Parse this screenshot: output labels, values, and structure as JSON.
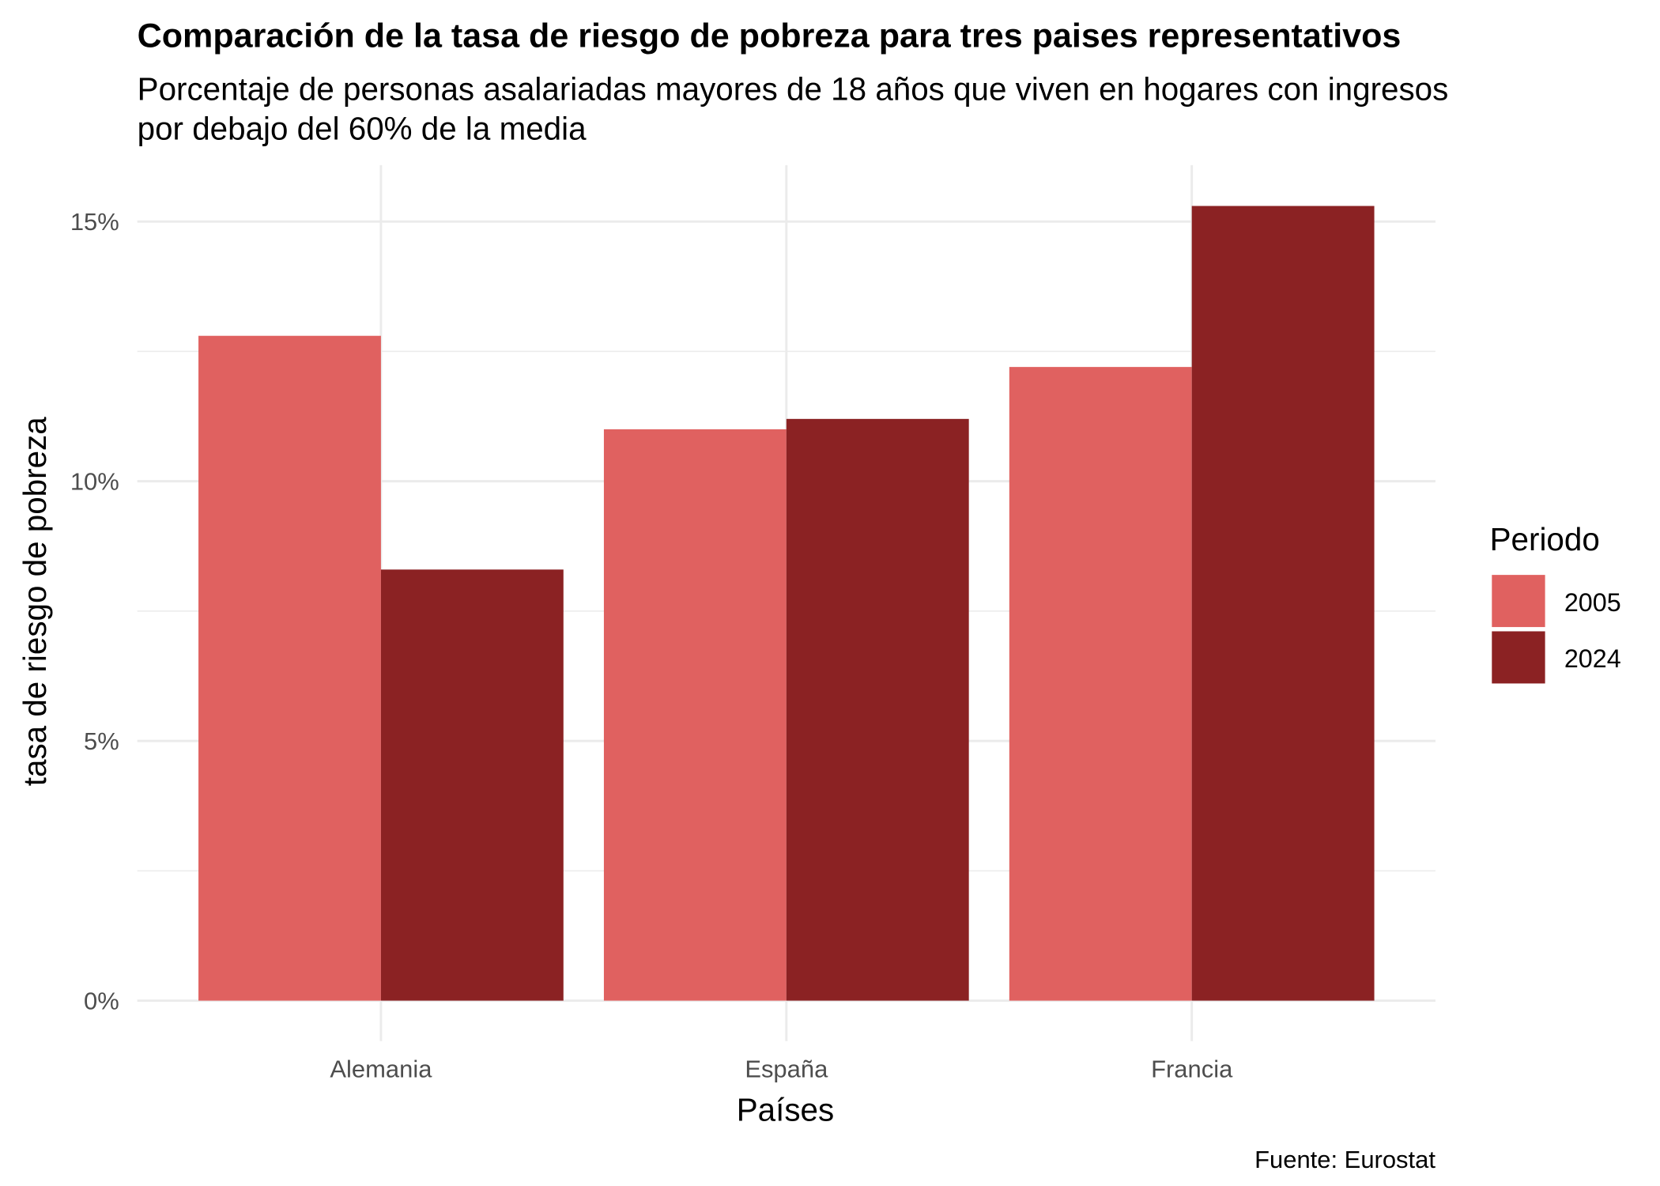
{
  "chart_data": {
    "type": "bar",
    "title": "Comparación de la tasa de riesgo de pobreza para tres paises representativos",
    "subtitle_lines": [
      "Porcentaje de personas asalariadas mayores de 18 años que viven en hogares con ingresos",
      "por debajo del 60% de la media"
    ],
    "xlabel": "Países",
    "ylabel": "tasa de riesgo de pobreza",
    "caption": "Fuente: Eurostat",
    "categories": [
      "Alemania",
      "España",
      "Francia"
    ],
    "series": [
      {
        "name": "2005",
        "color": "#e06160",
        "values": [
          12.8,
          11.0,
          12.2
        ]
      },
      {
        "name": "2024",
        "color": "#8b2223",
        "values": [
          8.3,
          11.2,
          15.3
        ]
      }
    ],
    "ylim": [
      0,
      16.2
    ],
    "yticks": [
      0,
      5,
      10,
      15
    ],
    "ytick_labels": [
      "0%",
      "5%",
      "10%",
      "15%"
    ],
    "legend": {
      "title": "Periodo",
      "position": "right"
    },
    "grid": true
  }
}
